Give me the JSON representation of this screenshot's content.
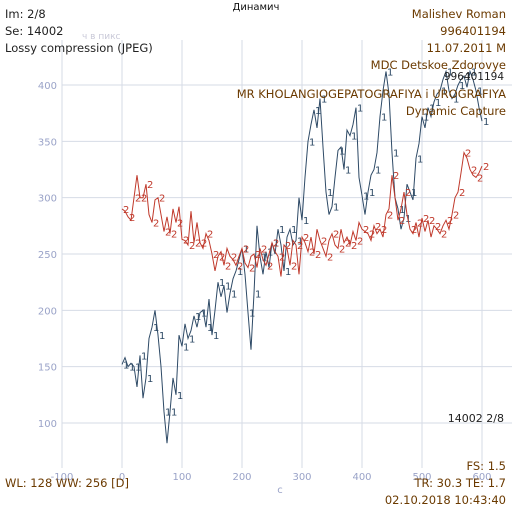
{
  "title": "Динамич",
  "top_left": {
    "im": "Im: 2/8",
    "se": "Se: 14002",
    "compression": "Lossy compression (JPEG)",
    "ghost_label": "ч в пикс"
  },
  "top_right": {
    "patient": "Malishev Roman",
    "id": "996401194",
    "dob": "11.07.2011 M",
    "institution": "MDC Detskoe Zdorovye",
    "id_overlay": "996401194",
    "study": "MR KHOLANGIOGEPATOGRAFIYA i UROGRAFIYA",
    "series": "Dynamic Capture"
  },
  "mid_right": "14002  2/8",
  "bottom_left": "WL: 128 WW: 256 [D]",
  "bottom_right": {
    "fs": "FS: 1.5",
    "tr_te": "TR: 30.3 TE: 1.7",
    "datetime": "02.10.2018 10:43:40"
  },
  "chart_data": {
    "type": "line",
    "xlabel": "c",
    "ylabel": "",
    "xlim": [
      -100,
      650
    ],
    "ylim": [
      60,
      440
    ],
    "x_ticks": [
      -100,
      0,
      100,
      200,
      300,
      400,
      500,
      600
    ],
    "y_ticks": [
      100,
      150,
      200,
      250,
      300,
      350,
      400
    ],
    "grid": true,
    "colors": {
      "series1": "#2e4a66",
      "series2": "#c0392b",
      "grid": "#d6dbe6",
      "axis_text": "#9aa3c8"
    },
    "series": [
      {
        "name": "1",
        "values": [
          [
            0,
            152
          ],
          [
            5,
            158
          ],
          [
            10,
            150
          ],
          [
            15,
            153
          ],
          [
            20,
            150
          ],
          [
            25,
            132
          ],
          [
            30,
            160
          ],
          [
            35,
            122
          ],
          [
            40,
            140
          ],
          [
            45,
            175
          ],
          [
            50,
            185
          ],
          [
            55,
            200
          ],
          [
            60,
            178
          ],
          [
            65,
            150
          ],
          [
            70,
            110
          ],
          [
            75,
            82
          ],
          [
            80,
            110
          ],
          [
            85,
            140
          ],
          [
            90,
            125
          ],
          [
            95,
            178
          ],
          [
            100,
            168
          ],
          [
            105,
            188
          ],
          [
            110,
            175
          ],
          [
            115,
            182
          ],
          [
            120,
            195
          ],
          [
            125,
            185
          ],
          [
            130,
            198
          ],
          [
            135,
            200
          ],
          [
            140,
            185
          ],
          [
            145,
            210
          ],
          [
            150,
            178
          ],
          [
            155,
            200
          ],
          [
            160,
            225
          ],
          [
            165,
            212
          ],
          [
            170,
            222
          ],
          [
            175,
            198
          ],
          [
            180,
            215
          ],
          [
            185,
            228
          ],
          [
            190,
            235
          ],
          [
            195,
            245
          ],
          [
            200,
            255
          ],
          [
            205,
            232
          ],
          [
            210,
            198
          ],
          [
            215,
            165
          ],
          [
            220,
            215
          ],
          [
            225,
            275
          ],
          [
            230,
            248
          ],
          [
            235,
            232
          ],
          [
            240,
            252
          ],
          [
            245,
            238
          ],
          [
            250,
            260
          ],
          [
            255,
            250
          ],
          [
            260,
            272
          ],
          [
            265,
            258
          ],
          [
            270,
            235
          ],
          [
            275,
            265
          ],
          [
            280,
            272
          ],
          [
            285,
            258
          ],
          [
            290,
            262
          ],
          [
            295,
            300
          ],
          [
            300,
            280
          ],
          [
            305,
            318
          ],
          [
            310,
            350
          ],
          [
            315,
            365
          ],
          [
            320,
            378
          ],
          [
            325,
            362
          ],
          [
            330,
            388
          ],
          [
            335,
            345
          ],
          [
            340,
            305
          ],
          [
            345,
            285
          ],
          [
            350,
            292
          ],
          [
            355,
            318
          ],
          [
            360,
            342
          ],
          [
            365,
            345
          ],
          [
            370,
            325
          ],
          [
            375,
            360
          ],
          [
            380,
            355
          ],
          [
            385,
            365
          ],
          [
            390,
            380
          ],
          [
            395,
            318
          ],
          [
            400,
            302
          ],
          [
            405,
            285
          ],
          [
            410,
            305
          ],
          [
            415,
            320
          ],
          [
            420,
            325
          ],
          [
            425,
            340
          ],
          [
            430,
            372
          ],
          [
            435,
            395
          ],
          [
            440,
            412
          ],
          [
            445,
            392
          ],
          [
            450,
            340
          ],
          [
            455,
            300
          ],
          [
            460,
            290
          ],
          [
            465,
            272
          ],
          [
            470,
            282
          ],
          [
            475,
            312
          ],
          [
            480,
            305
          ],
          [
            485,
            298
          ],
          [
            490,
            335
          ],
          [
            495,
            348
          ],
          [
            500,
            372
          ],
          [
            505,
            362
          ],
          [
            510,
            380
          ],
          [
            515,
            372
          ],
          [
            520,
            385
          ],
          [
            525,
            392
          ],
          [
            530,
            395
          ],
          [
            535,
            405
          ],
          [
            540,
            412
          ],
          [
            545,
            395
          ],
          [
            550,
            388
          ],
          [
            555,
            392
          ],
          [
            560,
            400
          ],
          [
            565,
            405
          ],
          [
            570,
            408
          ],
          [
            575,
            398
          ],
          [
            580,
            412
          ],
          [
            585,
            405
          ],
          [
            590,
            395
          ],
          [
            595,
            380
          ],
          [
            600,
            368
          ]
        ]
      },
      {
        "name": "2",
        "values": [
          [
            0,
            290
          ],
          [
            5,
            288
          ],
          [
            10,
            283
          ],
          [
            15,
            280
          ],
          [
            20,
            300
          ],
          [
            25,
            320
          ],
          [
            30,
            300
          ],
          [
            35,
            300
          ],
          [
            40,
            312
          ],
          [
            45,
            285
          ],
          [
            50,
            278
          ],
          [
            55,
            298
          ],
          [
            60,
            300
          ],
          [
            65,
            285
          ],
          [
            70,
            270
          ],
          [
            75,
            283
          ],
          [
            80,
            268
          ],
          [
            85,
            290
          ],
          [
            90,
            278
          ],
          [
            95,
            292
          ],
          [
            100,
            263
          ],
          [
            105,
            262
          ],
          [
            110,
            258
          ],
          [
            115,
            288
          ],
          [
            120,
            260
          ],
          [
            125,
            278
          ],
          [
            130,
            260
          ],
          [
            135,
            255
          ],
          [
            140,
            268
          ],
          [
            145,
            262
          ],
          [
            150,
            250
          ],
          [
            155,
            235
          ],
          [
            160,
            248
          ],
          [
            165,
            252
          ],
          [
            170,
            240
          ],
          [
            175,
            255
          ],
          [
            180,
            248
          ],
          [
            185,
            245
          ],
          [
            190,
            240
          ],
          [
            195,
            248
          ],
          [
            200,
            255
          ],
          [
            205,
            242
          ],
          [
            210,
            238
          ],
          [
            215,
            248
          ],
          [
            220,
            250
          ],
          [
            225,
            238
          ],
          [
            230,
            255
          ],
          [
            235,
            245
          ],
          [
            240,
            240
          ],
          [
            245,
            250
          ],
          [
            250,
            260
          ],
          [
            255,
            252
          ],
          [
            260,
            248
          ],
          [
            265,
            230
          ],
          [
            270,
            258
          ],
          [
            275,
            255
          ],
          [
            280,
            240
          ],
          [
            285,
            262
          ],
          [
            290,
            258
          ],
          [
            295,
            232
          ],
          [
            300,
            265
          ],
          [
            305,
            260
          ],
          [
            310,
            252
          ],
          [
            315,
            265
          ],
          [
            320,
            250
          ],
          [
            325,
            272
          ],
          [
            330,
            262
          ],
          [
            335,
            255
          ],
          [
            340,
            248
          ],
          [
            345,
            262
          ],
          [
            350,
            268
          ],
          [
            355,
            258
          ],
          [
            360,
            255
          ],
          [
            365,
            272
          ],
          [
            370,
            260
          ],
          [
            375,
            265
          ],
          [
            380,
            258
          ],
          [
            385,
            270
          ],
          [
            390,
            262
          ],
          [
            395,
            278
          ],
          [
            400,
            272
          ],
          [
            405,
            270
          ],
          [
            410,
            268
          ],
          [
            415,
            262
          ],
          [
            420,
            275
          ],
          [
            425,
            268
          ],
          [
            430,
            272
          ],
          [
            435,
            265
          ],
          [
            440,
            285
          ],
          [
            445,
            290
          ],
          [
            450,
            320
          ],
          [
            455,
            300
          ],
          [
            460,
            280
          ],
          [
            465,
            290
          ],
          [
            470,
            305
          ],
          [
            475,
            285
          ],
          [
            480,
            272
          ],
          [
            485,
            268
          ],
          [
            490,
            278
          ],
          [
            495,
            265
          ],
          [
            500,
            282
          ],
          [
            505,
            270
          ],
          [
            510,
            280
          ],
          [
            515,
            265
          ],
          [
            520,
            275
          ],
          [
            525,
            272
          ],
          [
            530,
            268
          ],
          [
            535,
            275
          ],
          [
            540,
            280
          ],
          [
            545,
            272
          ],
          [
            550,
            285
          ],
          [
            555,
            300
          ],
          [
            560,
            305
          ],
          [
            565,
            322
          ],
          [
            570,
            340
          ],
          [
            575,
            335
          ],
          [
            580,
            325
          ],
          [
            585,
            320
          ],
          [
            590,
            318
          ],
          [
            595,
            322
          ],
          [
            600,
            328
          ]
        ]
      }
    ]
  }
}
